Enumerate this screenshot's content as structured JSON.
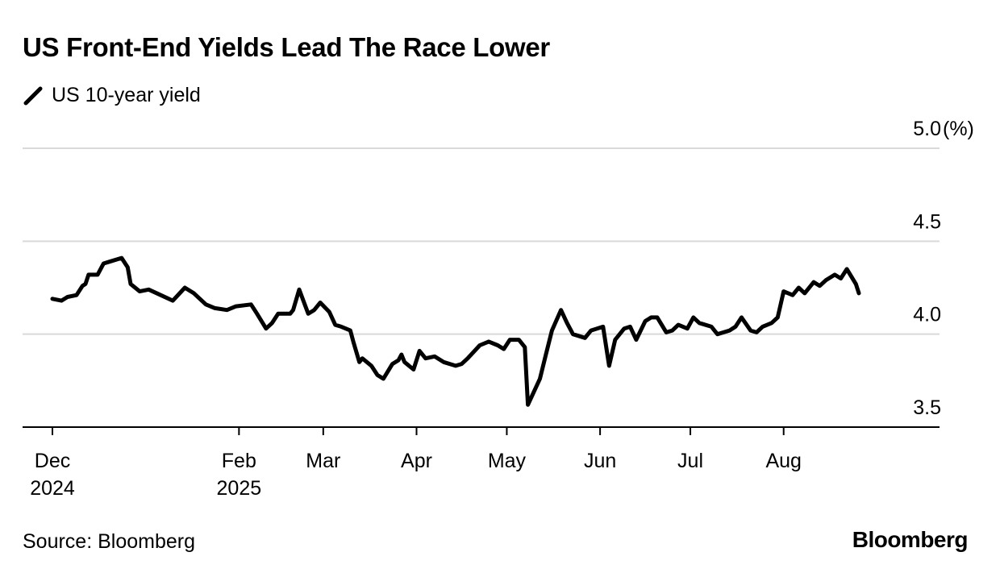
{
  "chart_data": {
    "type": "line",
    "title": "US Front-End Yields Lead The Race Lower",
    "y_unit": "(%)",
    "ylim": [
      3.5,
      5.0
    ],
    "y_ticks": [
      "5.0",
      "4.5",
      "4.0",
      "3.5"
    ],
    "x_ticks": [
      {
        "date": "2024-12-01",
        "line1": "Dec",
        "line2": "2024"
      },
      {
        "date": "2025-02-01",
        "line1": "Feb",
        "line2": "2025"
      },
      {
        "date": "2025-03-01",
        "line1": "Mar",
        "line2": ""
      },
      {
        "date": "2025-04-01",
        "line1": "Apr",
        "line2": ""
      },
      {
        "date": "2025-05-01",
        "line1": "May",
        "line2": ""
      },
      {
        "date": "2025-06-01",
        "line1": "Jun",
        "line2": ""
      },
      {
        "date": "2025-07-01",
        "line1": "Jul",
        "line2": ""
      },
      {
        "date": "2025-08-01",
        "line1": "Aug",
        "line2": ""
      }
    ],
    "grid": "horizontal",
    "legend_position": "top-left",
    "series": [
      {
        "name": "US 10-year yield",
        "color": "#000000",
        "points": [
          [
            "2024-12-01",
            4.19
          ],
          [
            "2024-12-04",
            4.18
          ],
          [
            "2024-12-06",
            4.2
          ],
          [
            "2024-12-09",
            4.21
          ],
          [
            "2024-12-11",
            4.26
          ],
          [
            "2024-12-12",
            4.27
          ],
          [
            "2024-12-13",
            4.32
          ],
          [
            "2024-12-16",
            4.32
          ],
          [
            "2024-12-18",
            4.38
          ],
          [
            "2024-12-20",
            4.39
          ],
          [
            "2024-12-24",
            4.41
          ],
          [
            "2024-12-26",
            4.36
          ],
          [
            "2024-12-27",
            4.27
          ],
          [
            "2024-12-30",
            4.23
          ],
          [
            "2025-01-02",
            4.24
          ],
          [
            "2025-01-06",
            4.21
          ],
          [
            "2025-01-10",
            4.18
          ],
          [
            "2025-01-14",
            4.25
          ],
          [
            "2025-01-17",
            4.22
          ],
          [
            "2025-01-21",
            4.16
          ],
          [
            "2025-01-24",
            4.14
          ],
          [
            "2025-01-28",
            4.13
          ],
          [
            "2025-01-31",
            4.15
          ],
          [
            "2025-02-05",
            4.16
          ],
          [
            "2025-02-07",
            4.11
          ],
          [
            "2025-02-10",
            4.03
          ],
          [
            "2025-02-12",
            4.06
          ],
          [
            "2025-02-14",
            4.11
          ],
          [
            "2025-02-18",
            4.11
          ],
          [
            "2025-02-19",
            4.13
          ],
          [
            "2025-02-21",
            4.24
          ],
          [
            "2025-02-24",
            4.11
          ],
          [
            "2025-02-26",
            4.13
          ],
          [
            "2025-02-28",
            4.17
          ],
          [
            "2025-03-03",
            4.12
          ],
          [
            "2025-03-05",
            4.05
          ],
          [
            "2025-03-07",
            4.04
          ],
          [
            "2025-03-10",
            4.02
          ],
          [
            "2025-03-11",
            3.96
          ],
          [
            "2025-03-13",
            3.85
          ],
          [
            "2025-03-14",
            3.87
          ],
          [
            "2025-03-17",
            3.83
          ],
          [
            "2025-03-19",
            3.78
          ],
          [
            "2025-03-21",
            3.76
          ],
          [
            "2025-03-24",
            3.84
          ],
          [
            "2025-03-26",
            3.86
          ],
          [
            "2025-03-27",
            3.89
          ],
          [
            "2025-03-28",
            3.85
          ],
          [
            "2025-03-31",
            3.81
          ],
          [
            "2025-04-02",
            3.91
          ],
          [
            "2025-04-04",
            3.87
          ],
          [
            "2025-04-07",
            3.88
          ],
          [
            "2025-04-10",
            3.85
          ],
          [
            "2025-04-14",
            3.83
          ],
          [
            "2025-04-16",
            3.84
          ],
          [
            "2025-04-18",
            3.87
          ],
          [
            "2025-04-22",
            3.94
          ],
          [
            "2025-04-25",
            3.96
          ],
          [
            "2025-04-28",
            3.94
          ],
          [
            "2025-04-30",
            3.92
          ],
          [
            "2025-05-02",
            3.97
          ],
          [
            "2025-05-05",
            3.97
          ],
          [
            "2025-05-07",
            3.93
          ],
          [
            "2025-05-08",
            3.62
          ],
          [
            "2025-05-12",
            3.76
          ],
          [
            "2025-05-14",
            3.89
          ],
          [
            "2025-05-16",
            4.02
          ],
          [
            "2025-05-19",
            4.13
          ],
          [
            "2025-05-21",
            4.06
          ],
          [
            "2025-05-23",
            4.0
          ],
          [
            "2025-05-27",
            3.98
          ],
          [
            "2025-05-29",
            4.02
          ],
          [
            "2025-06-02",
            4.04
          ],
          [
            "2025-06-04",
            3.83
          ],
          [
            "2025-06-06",
            3.97
          ],
          [
            "2025-06-09",
            4.03
          ],
          [
            "2025-06-11",
            4.04
          ],
          [
            "2025-06-13",
            3.97
          ],
          [
            "2025-06-16",
            4.07
          ],
          [
            "2025-06-18",
            4.09
          ],
          [
            "2025-06-20",
            4.09
          ],
          [
            "2025-06-23",
            4.01
          ],
          [
            "2025-06-25",
            4.02
          ],
          [
            "2025-06-27",
            4.05
          ],
          [
            "2025-06-30",
            4.03
          ],
          [
            "2025-07-02",
            4.09
          ],
          [
            "2025-07-04",
            4.06
          ],
          [
            "2025-07-08",
            4.04
          ],
          [
            "2025-07-10",
            4.0
          ],
          [
            "2025-07-14",
            4.02
          ],
          [
            "2025-07-16",
            4.04
          ],
          [
            "2025-07-18",
            4.09
          ],
          [
            "2025-07-21",
            4.02
          ],
          [
            "2025-07-23",
            4.01
          ],
          [
            "2025-07-25",
            4.04
          ],
          [
            "2025-07-28",
            4.06
          ],
          [
            "2025-07-30",
            4.09
          ],
          [
            "2025-07-31",
            4.16
          ],
          [
            "2025-08-01",
            4.23
          ],
          [
            "2025-08-04",
            4.21
          ],
          [
            "2025-08-06",
            4.25
          ],
          [
            "2025-08-08",
            4.22
          ],
          [
            "2025-08-11",
            4.28
          ],
          [
            "2025-08-13",
            4.26
          ],
          [
            "2025-08-15",
            4.29
          ],
          [
            "2025-08-18",
            4.32
          ],
          [
            "2025-08-20",
            4.3
          ],
          [
            "2025-08-22",
            4.35
          ],
          [
            "2025-08-25",
            4.27
          ],
          [
            "2025-08-26",
            4.22
          ]
        ]
      }
    ]
  },
  "source": "Source: Bloomberg",
  "brand": "Bloomberg"
}
